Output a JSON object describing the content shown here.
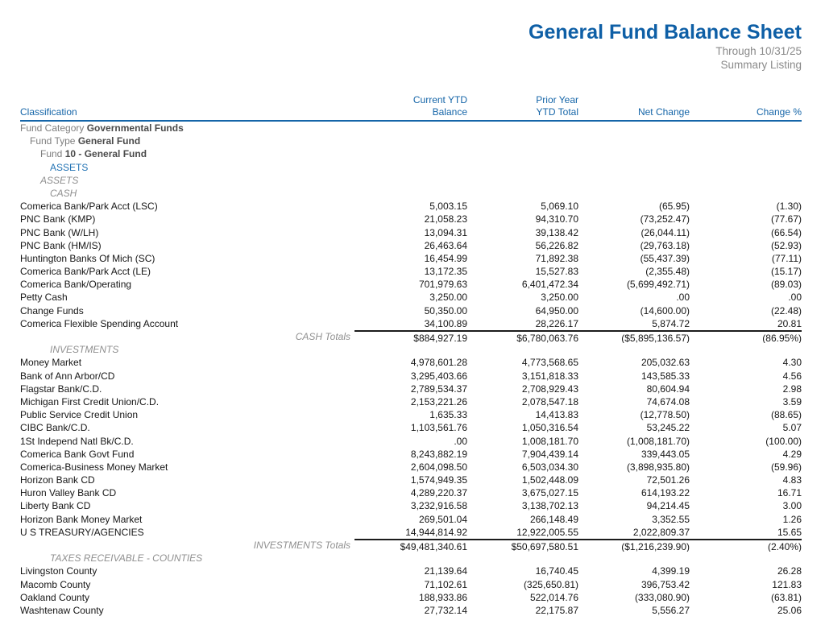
{
  "header": {
    "title": "General Fund Balance Sheet",
    "subtitle_date": "Through 10/31/25",
    "subtitle_type": "Summary Listing"
  },
  "colors": {
    "accent_blue": "#1565a8",
    "muted_gray": "#8a8a8a"
  },
  "table": {
    "headers": {
      "classification": "Classification",
      "current_ytd_line1": "Current YTD",
      "current_ytd_line2": "Balance",
      "prior_year_line1": "Prior Year",
      "prior_year_line2": "YTD Total",
      "net_change": "Net Change",
      "change_pct": "Change %"
    },
    "rows": [
      {
        "type": "hier",
        "level": 0,
        "label": "Fund Category",
        "value": "Governmental Funds"
      },
      {
        "type": "hier",
        "level": 1,
        "label": "Fund Type",
        "value": "General Fund"
      },
      {
        "type": "hier",
        "level": 2,
        "label": "Fund",
        "value": "10 - General Fund"
      },
      {
        "type": "group",
        "level": 3,
        "label": "ASSETS"
      },
      {
        "type": "section",
        "level": 2,
        "label": "ASSETS"
      },
      {
        "type": "section",
        "level": 3,
        "label": "CASH"
      },
      {
        "type": "account",
        "name": "Comerica Bank/Park Acct (LSC)",
        "values": [
          "5,003.15",
          "5,069.10",
          "(65.95)",
          "(1.30)"
        ]
      },
      {
        "type": "account",
        "name": "PNC Bank (KMP)",
        "values": [
          "21,058.23",
          "94,310.70",
          "(73,252.47)",
          "(77.67)"
        ]
      },
      {
        "type": "account",
        "name": "PNC Bank (W/LH)",
        "values": [
          "13,094.31",
          "39,138.42",
          "(26,044.11)",
          "(66.54)"
        ]
      },
      {
        "type": "account",
        "name": "PNC Bank (HM/IS)",
        "values": [
          "26,463.64",
          "56,226.82",
          "(29,763.18)",
          "(52.93)"
        ]
      },
      {
        "type": "account",
        "name": "Huntington Banks Of Mich (SC)",
        "values": [
          "16,454.99",
          "71,892.38",
          "(55,437.39)",
          "(77.11)"
        ]
      },
      {
        "type": "account",
        "name": "Comerica Bank/Park Acct (LE)",
        "values": [
          "13,172.35",
          "15,527.83",
          "(2,355.48)",
          "(15.17)"
        ]
      },
      {
        "type": "account",
        "name": "Comerica Bank/Operating",
        "values": [
          "701,979.63",
          "6,401,472.34",
          "(5,699,492.71)",
          "(89.03)"
        ]
      },
      {
        "type": "account",
        "name": "Petty Cash",
        "values": [
          "3,250.00",
          "3,250.00",
          ".00",
          ".00"
        ]
      },
      {
        "type": "account",
        "name": "Change Funds",
        "values": [
          "50,350.00",
          "64,950.00",
          "(14,600.00)",
          "(22.48)"
        ]
      },
      {
        "type": "account",
        "name": "Comerica Flexible Spending Account",
        "values": [
          "34,100.89",
          "28,226.17",
          "5,874.72",
          "20.81"
        ]
      },
      {
        "type": "totals",
        "label": "CASH Totals",
        "values": [
          "$884,927.19",
          "$6,780,063.76",
          "($5,895,136.57)",
          "(86.95%)"
        ]
      },
      {
        "type": "section",
        "level": 3,
        "label": "INVESTMENTS"
      },
      {
        "type": "account",
        "name": "Money Market",
        "values": [
          "4,978,601.28",
          "4,773,568.65",
          "205,032.63",
          "4.30"
        ]
      },
      {
        "type": "account",
        "name": "Bank of Ann Arbor/CD",
        "values": [
          "3,295,403.66",
          "3,151,818.33",
          "143,585.33",
          "4.56"
        ]
      },
      {
        "type": "account",
        "name": "Flagstar Bank/C.D.",
        "values": [
          "2,789,534.37",
          "2,708,929.43",
          "80,604.94",
          "2.98"
        ]
      },
      {
        "type": "account",
        "name": "Michigan First Credit Union/C.D.",
        "values": [
          "2,153,221.26",
          "2,078,547.18",
          "74,674.08",
          "3.59"
        ]
      },
      {
        "type": "account",
        "name": "Public Service Credit Union",
        "values": [
          "1,635.33",
          "14,413.83",
          "(12,778.50)",
          "(88.65)"
        ]
      },
      {
        "type": "account",
        "name": "CIBC Bank/C.D.",
        "values": [
          "1,103,561.76",
          "1,050,316.54",
          "53,245.22",
          "5.07"
        ]
      },
      {
        "type": "account",
        "name": "1St Independ Natl Bk/C.D.",
        "values": [
          ".00",
          "1,008,181.70",
          "(1,008,181.70)",
          "(100.00)"
        ]
      },
      {
        "type": "account",
        "name": "Comerica Bank Govt Fund",
        "values": [
          "8,243,882.19",
          "7,904,439.14",
          "339,443.05",
          "4.29"
        ]
      },
      {
        "type": "account",
        "name": "Comerica-Business Money Market",
        "values": [
          "2,604,098.50",
          "6,503,034.30",
          "(3,898,935.80)",
          "(59.96)"
        ]
      },
      {
        "type": "account",
        "name": "Horizon Bank CD",
        "values": [
          "1,574,949.35",
          "1,502,448.09",
          "72,501.26",
          "4.83"
        ]
      },
      {
        "type": "account",
        "name": "Huron Valley Bank CD",
        "values": [
          "4,289,220.37",
          "3,675,027.15",
          "614,193.22",
          "16.71"
        ]
      },
      {
        "type": "account",
        "name": "Liberty Bank CD",
        "values": [
          "3,232,916.58",
          "3,138,702.13",
          "94,214.45",
          "3.00"
        ]
      },
      {
        "type": "account",
        "name": "Horizon Bank Money Market",
        "values": [
          "269,501.04",
          "266,148.49",
          "3,352.55",
          "1.26"
        ]
      },
      {
        "type": "account",
        "name": "U S TREASURY/AGENCIES",
        "values": [
          "14,944,814.92",
          "12,922,005.55",
          "2,022,809.37",
          "15.65"
        ]
      },
      {
        "type": "totals",
        "label": "INVESTMENTS Totals",
        "values": [
          "$49,481,340.61",
          "$50,697,580.51",
          "($1,216,239.90)",
          "(2.40%)"
        ]
      },
      {
        "type": "section",
        "level": 3,
        "label": "TAXES RECEIVABLE - COUNTIES"
      },
      {
        "type": "account",
        "name": "Livingston County",
        "values": [
          "21,139.64",
          "16,740.45",
          "4,399.19",
          "26.28"
        ]
      },
      {
        "type": "account",
        "name": "Macomb County",
        "values": [
          "71,102.61",
          "(325,650.81)",
          "396,753.42",
          "121.83"
        ]
      },
      {
        "type": "account",
        "name": "Oakland County",
        "values": [
          "188,933.86",
          "522,014.76",
          "(333,080.90)",
          "(63.81)"
        ]
      },
      {
        "type": "account",
        "name": "Washtenaw County",
        "values": [
          "27,732.14",
          "22,175.87",
          "5,556.27",
          "25.06"
        ]
      }
    ]
  }
}
